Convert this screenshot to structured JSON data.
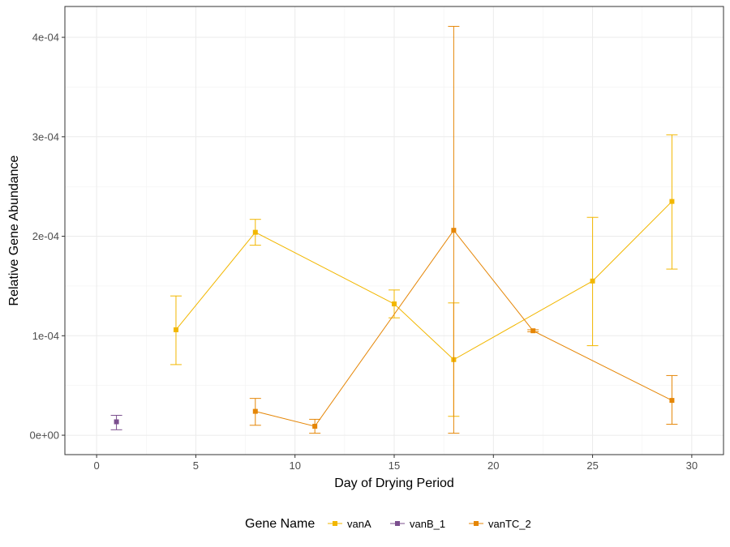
{
  "chart_data": {
    "type": "line",
    "title": "",
    "xlabel": "Day of Drying Period",
    "ylabel": "Relative Gene Abundance",
    "xlim": [
      -1.6,
      31.6
    ],
    "ylim": [
      -1.95e-05,
      0.000431
    ],
    "x_ticks": [
      0,
      5,
      10,
      15,
      20,
      25,
      30
    ],
    "y_ticks": [
      0,
      0.0001,
      0.0002,
      0.0003,
      0.0004
    ],
    "y_tick_labels": [
      "0e+00",
      "1e-04",
      "2e-04",
      "3e-04",
      "4e-04"
    ],
    "grid": true,
    "legend": {
      "title": "Gene Name",
      "placement": "bottom"
    },
    "series": [
      {
        "name": "vanA",
        "color": "#F2B701",
        "points": [
          {
            "x": 4,
            "y": 0.000106,
            "ymin": 7.1e-05,
            "ymax": 0.00014
          },
          {
            "x": 8,
            "y": 0.000204,
            "ymin": 0.000191,
            "ymax": 0.000217
          },
          {
            "x": 15,
            "y": 0.000132,
            "ymin": 0.000118,
            "ymax": 0.000146
          },
          {
            "x": 18,
            "y": 7.6e-05,
            "ymin": 1.9e-05,
            "ymax": 0.000133
          },
          {
            "x": 25,
            "y": 0.000155,
            "ymin": 9e-05,
            "ymax": 0.000219
          },
          {
            "x": 29,
            "y": 0.000235,
            "ymin": 0.000167,
            "ymax": 0.000302
          }
        ]
      },
      {
        "name": "vanB_1",
        "color": "#7B4F8E",
        "points": [
          {
            "x": 1,
            "y": 1.35e-05,
            "ymin": 5.5e-06,
            "ymax": 2e-05
          }
        ]
      },
      {
        "name": "vanTC_2",
        "color": "#E58606",
        "points": [
          {
            "x": 8,
            "y": 2.4e-05,
            "ymin": 1e-05,
            "ymax": 3.7e-05
          },
          {
            "x": 11,
            "y": 9e-06,
            "ymin": 2e-06,
            "ymax": 1.6e-05
          },
          {
            "x": 18,
            "y": 0.000206,
            "ymin": 2e-06,
            "ymax": 0.000411
          },
          {
            "x": 22,
            "y": 0.000105,
            "ymin": 0.000104,
            "ymax": 0.000106
          },
          {
            "x": 29,
            "y": 3.5e-05,
            "ymin": 1.1e-05,
            "ymax": 6e-05
          }
        ]
      }
    ]
  }
}
